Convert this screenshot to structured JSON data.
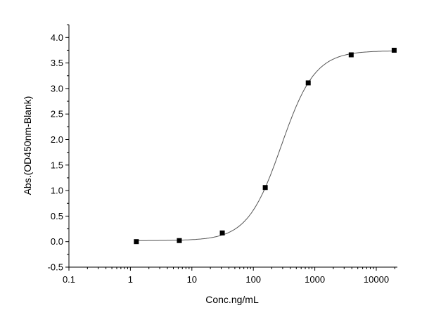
{
  "chart_data": {
    "type": "scatter",
    "title": "",
    "xlabel": "Conc.ng/mL",
    "ylabel": "Abs.(OD450nm-Blank)",
    "xscale": "log",
    "xlim": [
      0.1,
      22000
    ],
    "ylim": [
      -0.5,
      4.25
    ],
    "xticks": [
      0.1,
      1,
      10,
      100,
      1000,
      10000
    ],
    "xtick_labels": [
      "0.1",
      "1",
      "10",
      "100",
      "1000",
      "10000"
    ],
    "yticks": [
      -0.5,
      0.0,
      0.5,
      1.0,
      1.5,
      2.0,
      2.5,
      3.0,
      3.5,
      4.0
    ],
    "ytick_labels": [
      "-0.5",
      "0.0",
      "0.5",
      "1.0",
      "1.5",
      "2.0",
      "2.5",
      "3.0",
      "3.5",
      "4.0"
    ],
    "grid": false,
    "legend": "none",
    "series": [
      {
        "marker": "square",
        "color": "#000000",
        "fit_line": "sigmoidal",
        "x": [
          1.25,
          6.25,
          31.25,
          156.25,
          781.25,
          3906.25,
          19531.25
        ],
        "y": [
          0.0,
          0.02,
          0.17,
          1.06,
          3.11,
          3.66,
          3.75
        ]
      }
    ]
  }
}
